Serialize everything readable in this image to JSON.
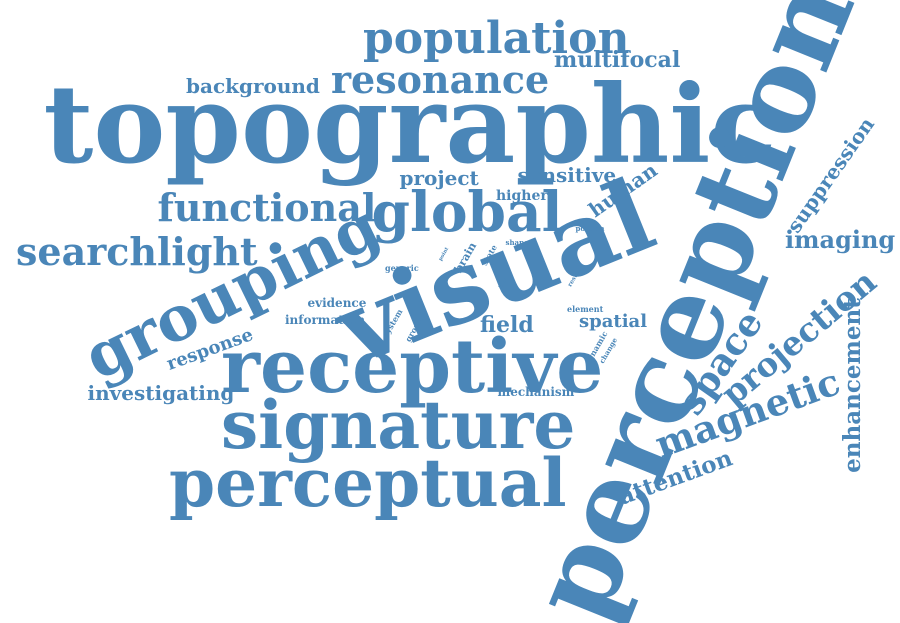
{
  "color": "#4a86b8",
  "words": [
    {
      "text": "topographic",
      "weight": 1.0
    },
    {
      "text": "perception",
      "weight": 1.0
    },
    {
      "text": "visual",
      "weight": 0.85
    },
    {
      "text": "receptive",
      "weight": 0.7
    },
    {
      "text": "signature",
      "weight": 0.65
    },
    {
      "text": "perceptual",
      "weight": 0.65
    },
    {
      "text": "grouping",
      "weight": 0.6
    },
    {
      "text": "global",
      "weight": 0.55
    },
    {
      "text": "population",
      "weight": 0.45
    },
    {
      "text": "resonance",
      "weight": 0.4
    },
    {
      "text": "functional",
      "weight": 0.4
    },
    {
      "text": "searchlight",
      "weight": 0.4
    },
    {
      "text": "magnetic",
      "weight": 0.4
    },
    {
      "text": "space",
      "weight": 0.4
    },
    {
      "text": "projection",
      "weight": 0.35
    },
    {
      "text": "imaging",
      "weight": 0.25
    },
    {
      "text": "enhancement",
      "weight": 0.25
    },
    {
      "text": "attention",
      "weight": 0.25
    },
    {
      "text": "field",
      "weight": 0.25
    },
    {
      "text": "suppression",
      "weight": 0.2
    },
    {
      "text": "multifocal",
      "weight": 0.2
    },
    {
      "text": "background",
      "weight": 0.2
    },
    {
      "text": "project",
      "weight": 0.2
    },
    {
      "text": "sensitive",
      "weight": 0.18
    },
    {
      "text": "human",
      "weight": 0.18
    },
    {
      "text": "spatial",
      "weight": 0.18
    },
    {
      "text": "response",
      "weight": 0.18
    },
    {
      "text": "investigating",
      "weight": 0.2
    },
    {
      "text": "higher",
      "weight": 0.12
    },
    {
      "text": "evidence",
      "weight": 0.1
    },
    {
      "text": "information",
      "weight": 0.1
    },
    {
      "text": "mechanism",
      "weight": 0.1
    },
    {
      "text": "brain",
      "weight": 0.08
    },
    {
      "text": "state",
      "weight": 0.05
    },
    {
      "text": "shape",
      "weight": 0.05
    },
    {
      "text": "portion",
      "weight": 0.05
    },
    {
      "text": "point",
      "weight": 0.04
    },
    {
      "text": "generic",
      "weight": 0.05
    },
    {
      "text": "system",
      "weight": 0.05
    },
    {
      "text": "ground",
      "weight": 0.05
    },
    {
      "text": "dynamic",
      "weight": 0.05
    },
    {
      "text": "change",
      "weight": 0.04
    },
    {
      "text": "element",
      "weight": 0.05
    },
    {
      "text": "result",
      "weight": 0.04
    },
    {
      "text": "blur",
      "weight": 0.03
    }
  ]
}
